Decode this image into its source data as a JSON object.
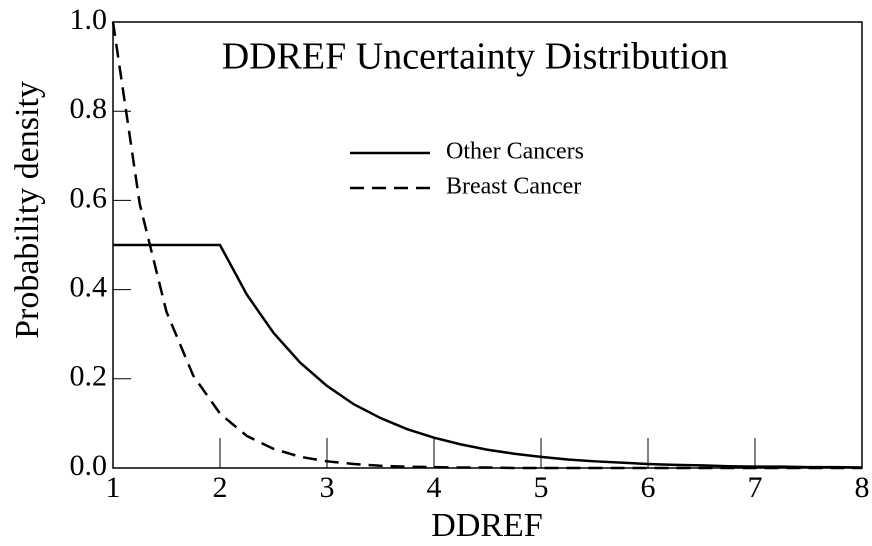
{
  "chart_data": {
    "type": "line",
    "title": "DDREF Uncertainty Distribution",
    "xlabel": "DDREF",
    "ylabel": "Probability density",
    "x": [
      1,
      1.25,
      1.5,
      1.75,
      2,
      2.25,
      2.5,
      2.75,
      3,
      3.25,
      3.5,
      3.75,
      4,
      4.25,
      4.5,
      4.75,
      5,
      5.25,
      5.5,
      5.75,
      6,
      6.25,
      6.5,
      6.75,
      7,
      7.25,
      7.5,
      7.75,
      8
    ],
    "series": [
      {
        "name": "Other Cancers",
        "color": "#000000",
        "dash": "solid",
        "values": [
          0.5,
          0.5,
          0.5,
          0.5,
          0.5,
          0.389,
          0.303,
          0.236,
          0.184,
          0.143,
          0.112,
          0.087,
          0.068,
          0.053,
          0.041,
          0.032,
          0.025,
          0.019,
          0.015,
          0.012,
          0.009,
          0.007,
          0.006,
          0.004,
          0.003,
          0.003,
          0.002,
          0.002,
          0.001
        ]
      },
      {
        "name": "Breast Cancer",
        "color": "#000000",
        "dash": "dashed",
        "values": [
          1.0,
          0.592,
          0.35,
          0.207,
          0.122,
          0.072,
          0.043,
          0.025,
          0.015,
          0.009,
          0.005,
          0.003,
          0.002,
          0.001,
          0.001,
          0,
          0,
          0,
          0,
          0,
          0,
          0,
          0,
          0,
          0,
          0,
          0,
          0,
          0
        ]
      }
    ],
    "xlim": [
      1,
      8
    ],
    "xticks": [
      1,
      2,
      3,
      4,
      5,
      6,
      7,
      8
    ],
    "ylim": [
      0,
      1
    ],
    "yticks": [
      {
        "value": 0,
        "label": "0.0"
      },
      0.2,
      0.4,
      0.6,
      0.8,
      {
        "value": 1,
        "label": "1.0"
      }
    ],
    "legend": "top"
  }
}
